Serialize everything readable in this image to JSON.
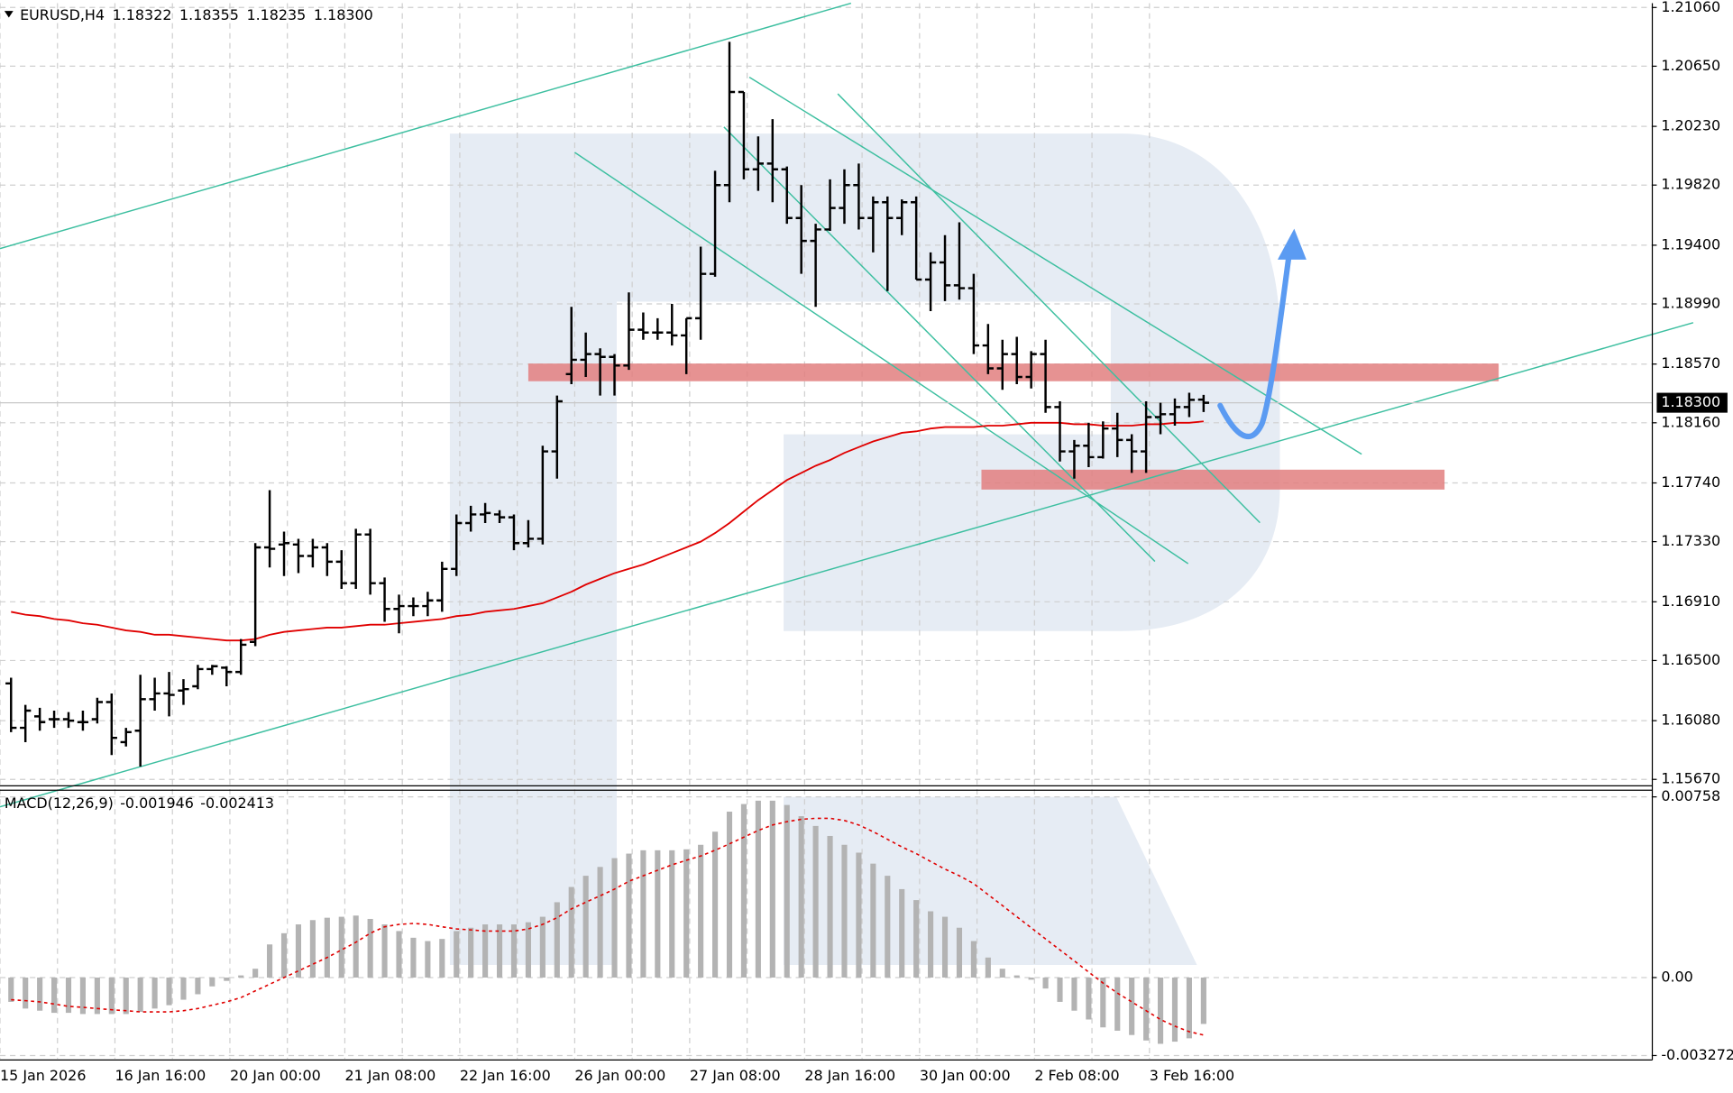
{
  "chart_data": [
    {
      "type": "ohlc",
      "title": "EURUSD,H4",
      "color": "#000000",
      "grid": true,
      "legend_values": [
        "1.18322",
        "1.18355",
        "1.18235",
        "1.18300"
      ],
      "categories": [
        "15 Jan 2026",
        null,
        null,
        null,
        null,
        null,
        null,
        null,
        "16 Jan 16:00",
        null,
        null,
        null,
        null,
        null,
        null,
        null,
        "20 Jan 00:00",
        null,
        null,
        null,
        null,
        null,
        null,
        null,
        "21 Jan 08:00",
        null,
        null,
        null,
        null,
        null,
        null,
        null,
        "22 Jan 16:00",
        null,
        null,
        null,
        null,
        null,
        null,
        null,
        "26 Jan 00:00",
        null,
        null,
        null,
        null,
        null,
        null,
        null,
        "27 Jan 08:00",
        null,
        null,
        null,
        null,
        null,
        null,
        null,
        "28 Jan 16:00",
        null,
        null,
        null,
        null,
        null,
        null,
        null,
        "30 Jan 00:00",
        null,
        null,
        null,
        null,
        null,
        null,
        null,
        "2 Feb 08:00",
        null,
        null,
        null,
        null,
        null,
        null,
        null,
        "3 Feb 16:00",
        null,
        null,
        null
      ],
      "open": [
        1.1634,
        1.1603,
        1.1611,
        1.1609,
        1.1609,
        1.1607,
        1.1609,
        1.1621,
        1.1593,
        1.1601,
        1.1623,
        1.1627,
        1.1629,
        1.1632,
        1.1644,
        1.1645,
        1.1642,
        1.1663,
        1.1729,
        1.1731,
        1.1731,
        1.1723,
        1.1729,
        1.1719,
        1.1704,
        1.1738,
        1.1704,
        1.1686,
        1.1688,
        1.1688,
        1.1692,
        1.1714,
        1.1746,
        1.1752,
        1.1752,
        1.175,
        1.1732,
        1.1735,
        1.1796,
        1.185,
        1.186,
        1.1864,
        1.1862,
        1.1856,
        1.1881,
        1.1879,
        1.1879,
        1.1877,
        1.1889,
        1.192,
        1.1982,
        1.2047,
        1.1993,
        1.1997,
        1.1993,
        1.1959,
        1.1943,
        1.1951,
        1.1966,
        1.1982,
        1.1959,
        1.197,
        1.1959,
        1.197,
        1.1916,
        1.1928,
        1.1912,
        1.191,
        1.187,
        1.1854,
        1.1864,
        1.1848,
        1.1864,
        1.1827,
        1.1796,
        1.18,
        1.1792,
        1.1812,
        1.1804,
        1.1796,
        1.182,
        1.1822,
        1.1827,
        1.18322
      ],
      "high": [
        1.1638,
        1.1619,
        1.1617,
        1.1615,
        1.1614,
        1.1615,
        1.1624,
        1.1627,
        1.1603,
        1.164,
        1.1638,
        1.1642,
        1.1637,
        1.1647,
        1.1647,
        1.1646,
        1.1665,
        1.1732,
        1.1769,
        1.174,
        1.1735,
        1.1735,
        1.1732,
        1.1727,
        1.1742,
        1.1742,
        1.1708,
        1.1696,
        1.1694,
        1.1698,
        1.1719,
        1.1752,
        1.1758,
        1.176,
        1.1755,
        1.1752,
        1.1748,
        1.18,
        1.1835,
        1.1897,
        1.1879,
        1.1868,
        1.1864,
        1.1907,
        1.1893,
        1.1889,
        1.1899,
        1.1889,
        1.1939,
        1.1992,
        1.2082,
        1.2047,
        1.2016,
        1.2028,
        1.1995,
        1.1982,
        1.1955,
        1.1986,
        1.1993,
        1.1997,
        1.1974,
        1.1974,
        1.1972,
        1.1974,
        1.1935,
        1.1947,
        1.1956,
        1.192,
        1.1885,
        1.1874,
        1.1876,
        1.1866,
        1.1874,
        1.1831,
        1.1804,
        1.1816,
        1.1817,
        1.1823,
        1.1808,
        1.1831,
        1.183,
        1.1833,
        1.1837,
        1.18355
      ],
      "low": [
        1.16,
        1.1593,
        1.1601,
        1.1603,
        1.1603,
        1.1601,
        1.1606,
        1.1584,
        1.159,
        1.1576,
        1.1615,
        1.1611,
        1.1619,
        1.163,
        1.164,
        1.1632,
        1.164,
        1.166,
        1.1715,
        1.1709,
        1.1711,
        1.1715,
        1.1709,
        1.17,
        1.17,
        1.1696,
        1.1677,
        1.1669,
        1.1681,
        1.1681,
        1.1684,
        1.1709,
        1.174,
        1.1746,
        1.1746,
        1.1727,
        1.1729,
        1.1731,
        1.1777,
        1.1843,
        1.1848,
        1.1835,
        1.1835,
        1.1853,
        1.1874,
        1.1874,
        1.187,
        1.185,
        1.1874,
        1.1918,
        1.197,
        1.1986,
        1.1978,
        1.197,
        1.1955,
        1.192,
        1.1897,
        1.195,
        1.1955,
        1.1951,
        1.1935,
        1.1908,
        1.1947,
        1.1916,
        1.1894,
        1.1901,
        1.1902,
        1.1864,
        1.185,
        1.1839,
        1.1843,
        1.184,
        1.1823,
        1.1789,
        1.1777,
        1.1785,
        1.1791,
        1.1792,
        1.1781,
        1.1781,
        1.1808,
        1.1814,
        1.182,
        1.18235
      ],
      "close": [
        1.1603,
        1.1615,
        1.1607,
        1.1609,
        1.1608,
        1.1607,
        1.1621,
        1.1596,
        1.16,
        1.1623,
        1.1627,
        1.1626,
        1.163,
        1.1644,
        1.1646,
        1.1642,
        1.1661,
        1.1729,
        1.1728,
        1.1732,
        1.1723,
        1.1729,
        1.1719,
        1.1704,
        1.1738,
        1.1704,
        1.1686,
        1.1688,
        1.1688,
        1.1692,
        1.1714,
        1.1746,
        1.1752,
        1.1753,
        1.175,
        1.1732,
        1.1735,
        1.1796,
        1.1831,
        1.186,
        1.1864,
        1.1862,
        1.1856,
        1.1881,
        1.1879,
        1.1879,
        1.1877,
        1.1889,
        1.192,
        1.1982,
        1.2047,
        1.1993,
        1.1997,
        1.1993,
        1.1959,
        1.1943,
        1.1951,
        1.1966,
        1.1982,
        1.1959,
        1.197,
        1.1959,
        1.197,
        1.1916,
        1.1928,
        1.1912,
        1.191,
        1.187,
        1.1854,
        1.1864,
        1.1848,
        1.1864,
        1.1827,
        1.1796,
        1.18,
        1.1792,
        1.1812,
        1.1804,
        1.1796,
        1.182,
        1.1822,
        1.1827,
        1.1832,
        1.183
      ],
      "moving_average": {
        "color": "#e00000",
        "values": [
          1.1684,
          1.1682,
          1.1681,
          1.1679,
          1.1678,
          1.1676,
          1.1675,
          1.1673,
          1.1671,
          1.167,
          1.1668,
          1.1668,
          1.1667,
          1.1666,
          1.1665,
          1.1664,
          1.1664,
          1.1665,
          1.1668,
          1.167,
          1.1671,
          1.1672,
          1.1673,
          1.1673,
          1.1674,
          1.1675,
          1.1675,
          1.1676,
          1.1677,
          1.1678,
          1.1679,
          1.1681,
          1.1682,
          1.1684,
          1.1685,
          1.1686,
          1.1688,
          1.169,
          1.1694,
          1.1698,
          1.1703,
          1.1707,
          1.1711,
          1.1714,
          1.1717,
          1.1721,
          1.1725,
          1.1729,
          1.1733,
          1.1739,
          1.1746,
          1.1754,
          1.1762,
          1.1769,
          1.1776,
          1.1781,
          1.1786,
          1.179,
          1.1795,
          1.1799,
          1.1803,
          1.1806,
          1.1809,
          1.181,
          1.1812,
          1.1813,
          1.1813,
          1.1813,
          1.1814,
          1.1814,
          1.1815,
          1.1816,
          1.1816,
          1.1816,
          1.1815,
          1.1815,
          1.1814,
          1.1814,
          1.1814,
          1.1815,
          1.1815,
          1.1816,
          1.1816,
          1.1817
        ]
      },
      "current_price": {
        "value": 1.183,
        "label": "1.18300"
      },
      "ylim": [
        1.15625,
        1.2109
      ],
      "yticks": [
        {
          "value": 1.2106,
          "label": "1.21060"
        },
        {
          "value": 1.2065,
          "label": "1.20650"
        },
        {
          "value": 1.2023,
          "label": "1.20230"
        },
        {
          "value": 1.1982,
          "label": "1.19820"
        },
        {
          "value": 1.194,
          "label": "1.19400"
        },
        {
          "value": 1.1899,
          "label": "1.18990"
        },
        {
          "value": 1.1857,
          "label": "1.18570"
        },
        {
          "value": 1.1816,
          "label": "1.18160"
        },
        {
          "value": 1.1774,
          "label": "1.17740"
        },
        {
          "value": 1.1733,
          "label": "1.17330"
        },
        {
          "value": 1.1691,
          "label": "1.16910"
        },
        {
          "value": 1.165,
          "label": "1.16500"
        },
        {
          "value": 1.1608,
          "label": "1.16080"
        },
        {
          "value": 1.1567,
          "label": "1.15670"
        }
      ]
    },
    {
      "type": "macd",
      "title": "MACD(12,26,9)",
      "grid": true,
      "histogram": {
        "color": "#b3b3b3",
        "values": [
          -0.00102,
          -0.0013,
          -0.00139,
          -0.00148,
          -0.00148,
          -0.00153,
          -0.00153,
          -0.00153,
          -0.00153,
          -0.00144,
          -0.0013,
          -0.00116,
          -0.00093,
          -0.0007,
          -0.00037,
          -0.00014,
          9e-05,
          0.00037,
          0.00139,
          0.00186,
          0.00223,
          0.00241,
          0.00251,
          0.00255,
          0.0026,
          0.00246,
          0.00223,
          0.00195,
          0.00167,
          0.00153,
          0.00162,
          0.00195,
          0.00209,
          0.00223,
          0.00223,
          0.00223,
          0.00232,
          0.00255,
          0.00316,
          0.0038,
          0.00427,
          0.00464,
          0.00501,
          0.0052,
          0.00534,
          0.00534,
          0.00534,
          0.00538,
          0.00557,
          0.00612,
          0.00696,
          0.00728,
          0.00742,
          0.00742,
          0.00724,
          0.00677,
          0.00636,
          0.00594,
          0.00557,
          0.00524,
          0.00478,
          0.00427,
          0.00371,
          0.00325,
          0.00278,
          0.00255,
          0.00209,
          0.00153,
          0.00084,
          0.00037,
          9e-05,
          -9e-05,
          -0.00046,
          -0.00102,
          -0.00139,
          -0.00176,
          -0.00209,
          -0.00223,
          -0.00241,
          -0.00264,
          -0.00278,
          -0.00269,
          -0.00255,
          -0.001946
        ]
      },
      "signal": {
        "color": "#e00000",
        "values": [
          -0.00093,
          -0.00097,
          -0.00102,
          -0.00111,
          -0.00121,
          -0.00125,
          -0.0013,
          -0.00135,
          -0.00139,
          -0.00144,
          -0.00144,
          -0.00144,
          -0.00139,
          -0.0013,
          -0.00116,
          -0.00102,
          -0.00084,
          -0.00056,
          -0.00028,
          0,
          0.00028,
          0.00056,
          0.00084,
          0.00116,
          0.00148,
          0.00186,
          0.00213,
          0.00223,
          0.00227,
          0.00223,
          0.00213,
          0.00204,
          0.002,
          0.00195,
          0.00195,
          0.00195,
          0.00204,
          0.00223,
          0.00251,
          0.00288,
          0.00316,
          0.00343,
          0.00371,
          0.00404,
          0.00427,
          0.0045,
          0.00473,
          0.00492,
          0.0051,
          0.00534,
          0.00561,
          0.00589,
          0.00617,
          0.0064,
          0.00654,
          0.00664,
          0.00668,
          0.00668,
          0.00659,
          0.0064,
          0.00612,
          0.0058,
          0.00548,
          0.0052,
          0.00487,
          0.00455,
          0.00427,
          0.00394,
          0.00348,
          0.00302,
          0.00255,
          0.00209,
          0.00162,
          0.00116,
          0.0007,
          0.00023,
          -0.00023,
          -0.00065,
          -0.00102,
          -0.00139,
          -0.00176,
          -0.00204,
          -0.00227,
          -0.002413
        ]
      },
      "ylim": [
        -0.003272,
        0.00758
      ],
      "yticks": [
        0.00758,
        {
          "value": 0,
          "label": "0.00"
        },
        -0.003272
      ]
    }
  ]
}
